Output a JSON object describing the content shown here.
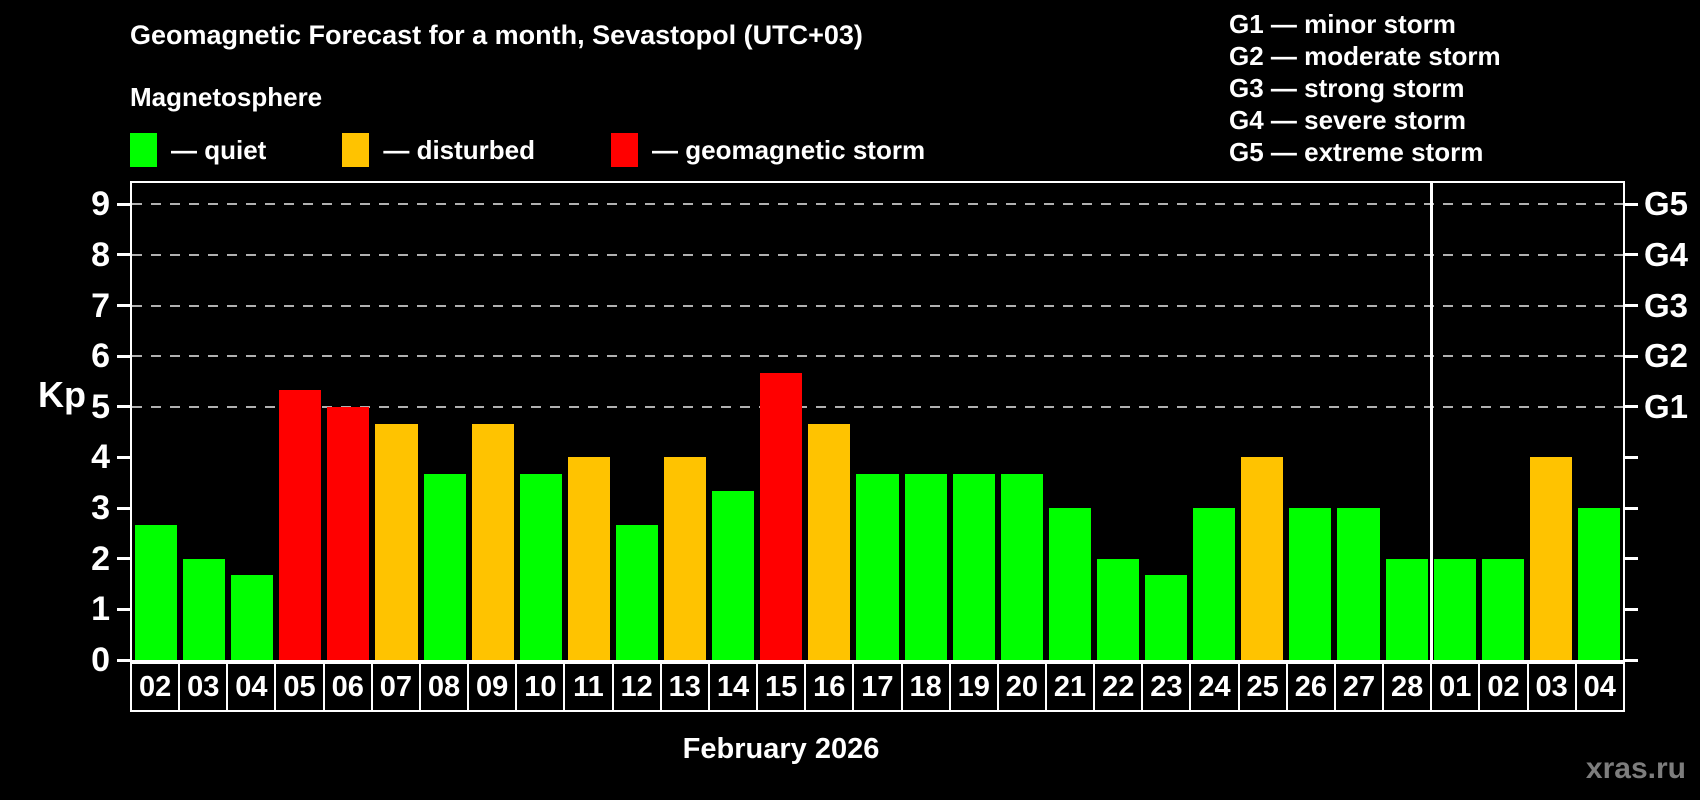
{
  "header": {
    "title": "Geomagnetic Forecast for a month, Sevastopol (UTC+03)",
    "subtitle": "Magnetosphere"
  },
  "legend": {
    "items": [
      {
        "label": "— quiet",
        "status": "quiet"
      },
      {
        "label": "— disturbed",
        "status": "disturbed"
      },
      {
        "label": "— geomagnetic storm",
        "status": "storm"
      }
    ]
  },
  "g_legend": {
    "items": [
      "G1 — minor storm",
      "G2 — moderate storm",
      "G3 — strong storm",
      "G4 — severe storm",
      "G5 — extreme storm"
    ]
  },
  "footer": {
    "caption": "February 2026",
    "watermark": "xras.ru"
  },
  "colors": {
    "quiet": "#00ff00",
    "disturbed": "#ffc300",
    "storm": "#ff0000",
    "background": "#000000",
    "axis": "#ffffff",
    "grid": "#b0b0b0",
    "watermark": "#7d7d7d"
  },
  "chart_data": {
    "type": "bar",
    "title": "Geomagnetic Forecast for a month, Sevastopol (UTC+03)",
    "subtitle": "Magnetosphere",
    "xlabel": "February 2026",
    "ylabel": "Kp",
    "ylim": [
      0,
      9.42
    ],
    "y_ticks": [
      0,
      1,
      2,
      3,
      4,
      5,
      6,
      7,
      8,
      9
    ],
    "gridlines_at": [
      5,
      6,
      7,
      8,
      9
    ],
    "grid": "dashed, only at storm levels 5-9",
    "legend_position": "top-left and top-right",
    "right_axis_labels": [
      {
        "label": "G1",
        "kp": 5
      },
      {
        "label": "G2",
        "kp": 6
      },
      {
        "label": "G3",
        "kp": 7
      },
      {
        "label": "G4",
        "kp": 8
      },
      {
        "label": "G5",
        "kp": 9
      }
    ],
    "month_separator_after_index": 26,
    "categories": [
      "02",
      "03",
      "04",
      "05",
      "06",
      "07",
      "08",
      "09",
      "10",
      "11",
      "12",
      "13",
      "14",
      "15",
      "16",
      "17",
      "18",
      "19",
      "20",
      "21",
      "22",
      "23",
      "24",
      "25",
      "26",
      "27",
      "28",
      "01",
      "02",
      "03",
      "04"
    ],
    "days": [
      {
        "day": "02",
        "kp": 2.67,
        "status": "quiet"
      },
      {
        "day": "03",
        "kp": 2.0,
        "status": "quiet"
      },
      {
        "day": "04",
        "kp": 1.67,
        "status": "quiet"
      },
      {
        "day": "05",
        "kp": 5.33,
        "status": "storm"
      },
      {
        "day": "06",
        "kp": 5.0,
        "status": "storm"
      },
      {
        "day": "07",
        "kp": 4.67,
        "status": "disturbed"
      },
      {
        "day": "08",
        "kp": 3.67,
        "status": "quiet"
      },
      {
        "day": "09",
        "kp": 4.67,
        "status": "disturbed"
      },
      {
        "day": "10",
        "kp": 3.67,
        "status": "quiet"
      },
      {
        "day": "11",
        "kp": 4.0,
        "status": "disturbed"
      },
      {
        "day": "12",
        "kp": 2.67,
        "status": "quiet"
      },
      {
        "day": "13",
        "kp": 4.0,
        "status": "disturbed"
      },
      {
        "day": "14",
        "kp": 3.33,
        "status": "quiet"
      },
      {
        "day": "15",
        "kp": 5.67,
        "status": "storm"
      },
      {
        "day": "16",
        "kp": 4.67,
        "status": "disturbed"
      },
      {
        "day": "17",
        "kp": 3.67,
        "status": "quiet"
      },
      {
        "day": "18",
        "kp": 3.67,
        "status": "quiet"
      },
      {
        "day": "19",
        "kp": 3.67,
        "status": "quiet"
      },
      {
        "day": "20",
        "kp": 3.67,
        "status": "quiet"
      },
      {
        "day": "21",
        "kp": 3.0,
        "status": "quiet"
      },
      {
        "day": "22",
        "kp": 2.0,
        "status": "quiet"
      },
      {
        "day": "23",
        "kp": 1.67,
        "status": "quiet"
      },
      {
        "day": "24",
        "kp": 3.0,
        "status": "quiet"
      },
      {
        "day": "25",
        "kp": 4.0,
        "status": "disturbed"
      },
      {
        "day": "26",
        "kp": 3.0,
        "status": "quiet"
      },
      {
        "day": "27",
        "kp": 3.0,
        "status": "quiet"
      },
      {
        "day": "28",
        "kp": 2.0,
        "status": "quiet"
      },
      {
        "day": "01",
        "kp": 2.0,
        "status": "quiet"
      },
      {
        "day": "02",
        "kp": 2.0,
        "status": "quiet"
      },
      {
        "day": "03",
        "kp": 4.0,
        "status": "disturbed"
      },
      {
        "day": "04",
        "kp": 3.0,
        "status": "quiet"
      }
    ]
  }
}
